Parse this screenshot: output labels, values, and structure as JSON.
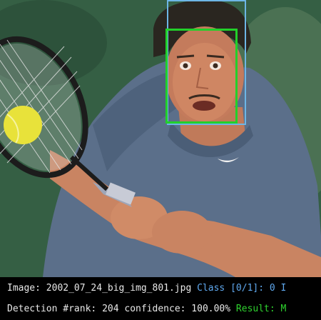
{
  "image_viewer": {
    "photo_subject": "tennis-player-backhand"
  },
  "detections": [
    {
      "label": "outer-face-box",
      "color": "#6db6e6"
    },
    {
      "label": "inner-face-box",
      "color": "#22d02a"
    }
  ],
  "info_panel": {
    "image_label": "Image:",
    "image_name": "2002_07_24_big_img_801.jpg",
    "class_text": "Class [0/1]: 0 I",
    "detection_label": "Detection #rank:",
    "rank_value": "204",
    "confidence_label": "confidence:",
    "confidence_value": "100.00%",
    "result_text": "Result: M",
    "colors": {
      "text": "#e8e8e8",
      "class": "#5fa8ee",
      "result": "#2fd32f"
    }
  }
}
